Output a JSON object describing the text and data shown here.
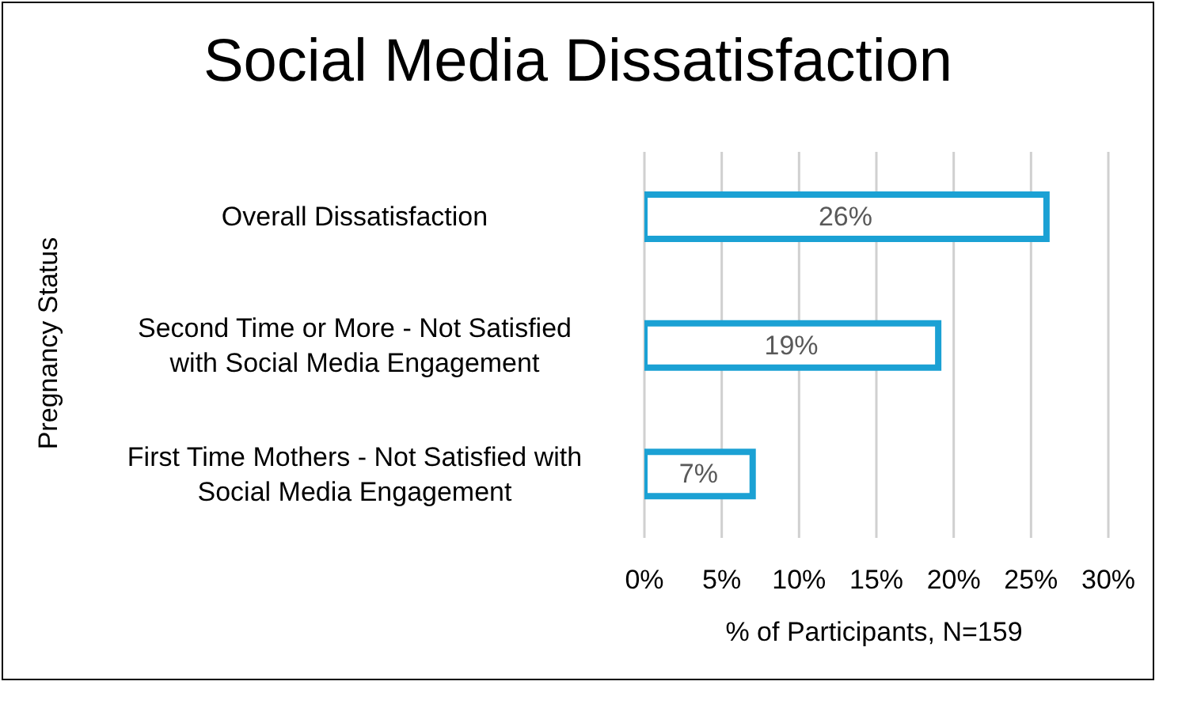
{
  "chart_data": {
    "type": "bar",
    "orientation": "horizontal",
    "title": "Social Media Dissatisfaction",
    "xlabel": "% of Participants, N=159",
    "ylabel": "Pregnancy Status",
    "categories": [
      "Overall Dissatisfaction",
      "Second Time or More  - Not Satisfied with Social Media Engagement",
      "First Time Mothers - Not Satisfied with Social Media Engagement"
    ],
    "values": [
      26,
      19,
      7
    ],
    "value_labels": [
      "26%",
      "19%",
      "7%"
    ],
    "color": "#1ba1d4",
    "xlim": [
      0,
      30
    ],
    "xticks": [
      {
        "value": 0,
        "label": "0%"
      },
      {
        "value": 5,
        "label": "5%"
      },
      {
        "value": 10,
        "label": "10%"
      },
      {
        "value": 15,
        "label": "15%"
      },
      {
        "value": 20,
        "label": "20%"
      },
      {
        "value": 25,
        "label": "25%"
      },
      {
        "value": 30,
        "label": "30%"
      }
    ],
    "grid": "x"
  }
}
